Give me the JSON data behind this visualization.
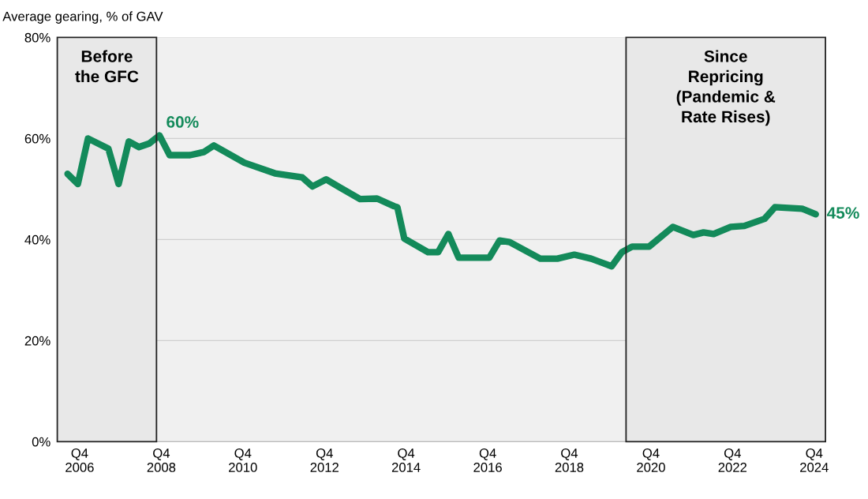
{
  "chart_data": {
    "type": "line",
    "title": "Average gearing, % of GAV",
    "x": [
      "2006-06-15",
      "2006-09-15",
      "2006-12-15",
      "2007-06-15",
      "2007-09-15",
      "2007-12-15",
      "2008-03-15",
      "2008-06-15",
      "2008-09-15",
      "2008-12-15",
      "2009-06-15",
      "2009-10-15",
      "2010-01-15",
      "2010-10-15",
      "2011-07-15",
      "2012-03-15",
      "2012-06-15",
      "2012-10-15",
      "2013-02-15",
      "2013-08-15",
      "2014-01-15",
      "2014-06-15",
      "2014-07-15",
      "2014-09-15",
      "2015-04-15",
      "2015-07-15",
      "2015-10-15",
      "2016-01-15",
      "2016-10-15",
      "2017-01-15",
      "2017-04-15",
      "2018-01-15",
      "2018-06-15",
      "2018-11-15",
      "2019-04-15",
      "2019-10-15",
      "2020-01-15",
      "2020-04-15",
      "2020-09-15",
      "2021-04-15",
      "2021-10-15",
      "2022-01-15",
      "2022-04-15",
      "2022-09-15",
      "2023-01-15",
      "2023-07-15",
      "2023-10-15",
      "2024-06-15",
      "2024-10-15"
    ],
    "series": [
      {
        "color": "#138a5a",
        "values": [
          53,
          51,
          60,
          58,
          51,
          59.4,
          58.3,
          59,
          60.6,
          56.7,
          56.7,
          57.3,
          58.6,
          55.2,
          53.1,
          52.3,
          50.5,
          51.9,
          50.3,
          48,
          48.1,
          46.6,
          46.4,
          40.2,
          37.5,
          37.5,
          41.1,
          36.4,
          36.4,
          39.8,
          39.5,
          36.2,
          36.2,
          37,
          36.2,
          34.7,
          37.5,
          38.6,
          38.6,
          42.5,
          40.9,
          41.4,
          41.1,
          42.5,
          42.7,
          44.1,
          46.4,
          46.1,
          45
        ]
      }
    ],
    "xlim": [
      "2006-03-15",
      "2025-01-10"
    ],
    "xticks": [
      {
        "value": "2006-10-01",
        "label": "Q4\n2006"
      },
      {
        "value": "2008-10-01",
        "label": "Q4\n2008"
      },
      {
        "value": "2010-10-01",
        "label": "Q4\n2010"
      },
      {
        "value": "2012-10-01",
        "label": "Q4\n2012"
      },
      {
        "value": "2014-10-01",
        "label": "Q4\n2014"
      },
      {
        "value": "2016-10-01",
        "label": "Q4\n2016"
      },
      {
        "value": "2018-10-01",
        "label": "Q4\n2018"
      },
      {
        "value": "2020-10-01",
        "label": "Q4\n2020"
      },
      {
        "value": "2022-10-01",
        "label": "Q4\n2022"
      },
      {
        "value": "2024-10-01",
        "label": "Q4\n2024"
      }
    ],
    "ylim": [
      0,
      80
    ],
    "yticks": [
      {
        "value": 0,
        "label": "0%"
      },
      {
        "value": 20,
        "label": "20%"
      },
      {
        "value": 40,
        "label": "40%"
      },
      {
        "value": 60,
        "label": "60%"
      },
      {
        "value": 80,
        "label": "80%"
      }
    ],
    "grid": "y",
    "bands": [
      {
        "axis": "x",
        "from": "2006-03-15",
        "to": "2008-08-19",
        "label": "Before\nthe GFC",
        "color": "#e8e8e8"
      },
      {
        "axis": "x",
        "from": "2020-02-21",
        "to": "2025-01-10",
        "label": "Since\nRepricing\n(Pandemic &\nRate Rises)",
        "color": "#e8e8e8"
      }
    ],
    "annotations": [
      {
        "text": "60%",
        "x": "2008-09-15",
        "y": 60.6
      },
      {
        "text": "45%",
        "x": "2024-10-15",
        "y": 45
      }
    ]
  }
}
